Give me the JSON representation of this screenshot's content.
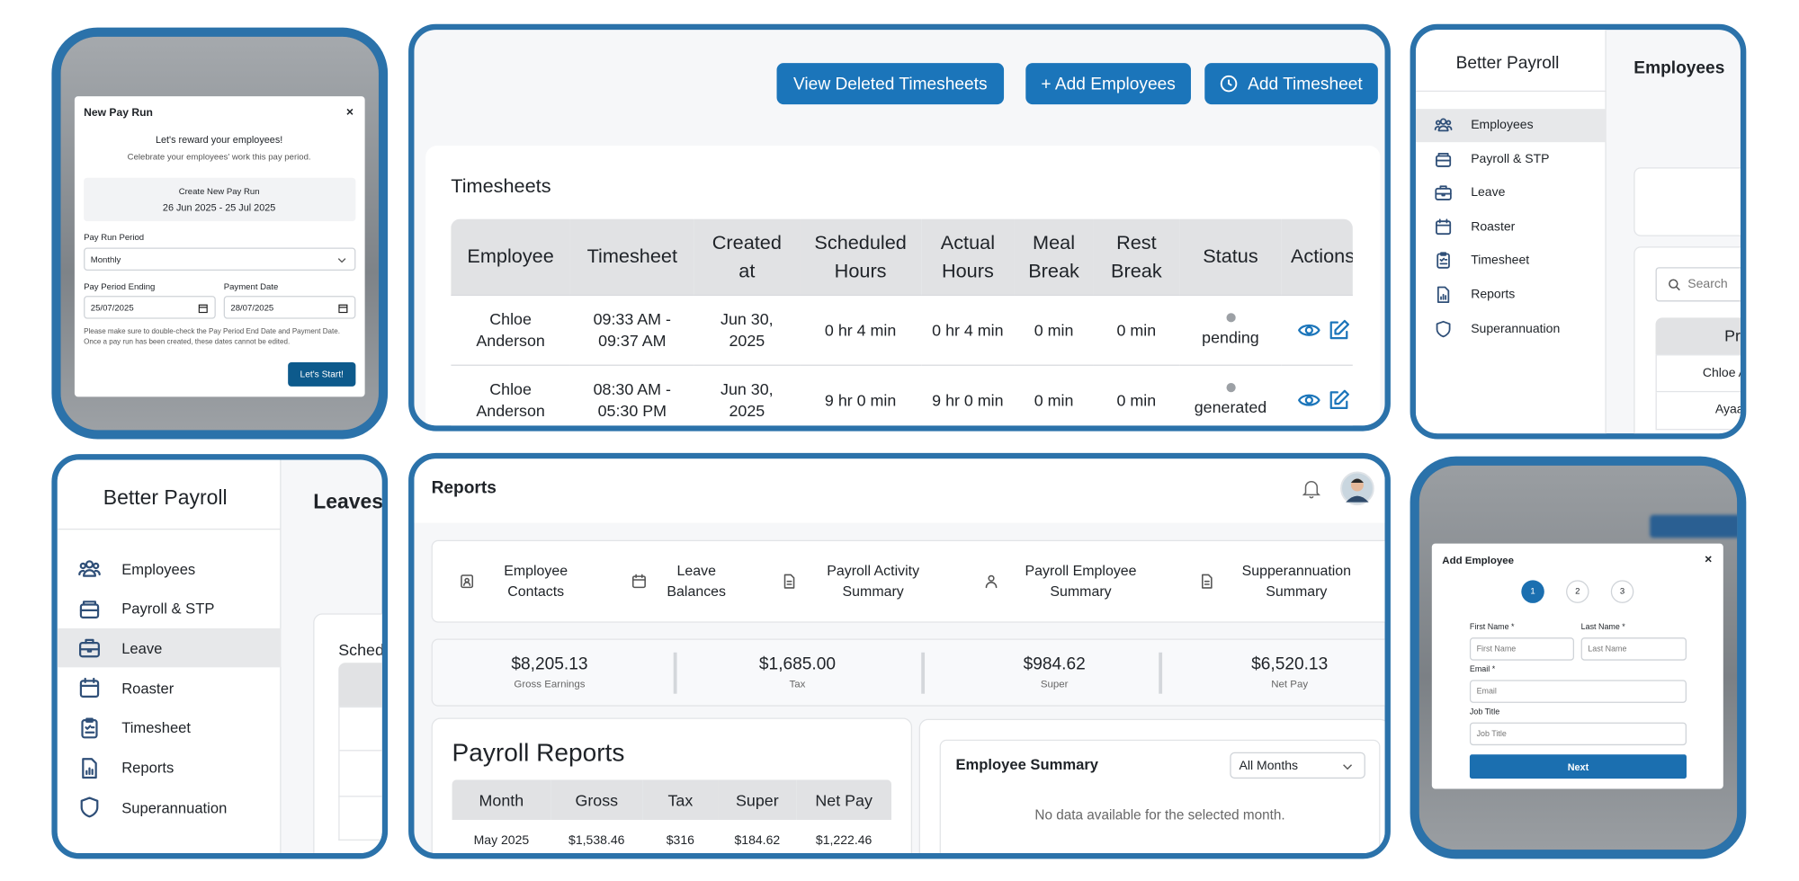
{
  "pay_run_modal": {
    "title": "New Pay Run",
    "close": "×",
    "heading": "Let's reward your employees!",
    "subheading": "Celebrate your employees' work this pay period.",
    "create_label": "Create New Pay Run",
    "date_range": "26 Jun 2025 - 25 Jul 2025",
    "period_label": "Pay Run Period",
    "period_value": "Monthly",
    "ending_label": "Pay Period Ending",
    "ending_value": "25/07/2025",
    "payment_label": "Payment Date",
    "payment_value": "28/07/2025",
    "note": "Please make sure to double-check the Pay Period End Date and Payment Date. Once a pay run has been created, these dates cannot be edited.",
    "button": "Let's Start!"
  },
  "timesheets_page": {
    "actions": [
      "View Deleted Timesheets",
      "+ Add Employees",
      "Add Timesheet"
    ],
    "card_title": "Timesheets",
    "columns": [
      "Employee",
      "Timesheet",
      "Created at",
      "Scheduled Hours",
      "Actual Hours",
      "Meal Break",
      "Rest Break",
      "Status",
      "Actions"
    ],
    "rows": [
      [
        "Chloe Anderson",
        "09:33 AM - 09:37 AM",
        "Jun 30, 2025",
        "0 hr 4 min",
        "0 hr 4 min",
        "0 min",
        "0 min",
        "pending"
      ],
      [
        "Chloe Anderson",
        "08:30 AM - 05:30 PM",
        "Jun 30, 2025",
        "9 hr 0 min",
        "9 hr 0 min",
        "0 min",
        "0 min",
        "generated"
      ]
    ]
  },
  "employees_page": {
    "brand": "Better Payroll",
    "nav": [
      "Employees",
      "Payroll & STP",
      "Leave",
      "Roaster",
      "Timesheet",
      "Reports",
      "Superannuation"
    ],
    "title": "Employees",
    "search_placeholder": "Search",
    "column": "Pr",
    "rows": [
      "Chloe A",
      "Ayaa"
    ]
  },
  "leave_page": {
    "brand": "Better Payroll",
    "nav": [
      "Employees",
      "Payroll & STP",
      "Leave",
      "Roaster",
      "Timesheet",
      "Reports",
      "Superannuation"
    ],
    "title": "Leaves",
    "card_title": "Sched"
  },
  "reports_page": {
    "title": "Reports",
    "tabs": [
      "Employee Contacts",
      "Leave Balances",
      "Payroll Activity Summary",
      "Payroll Employee Summary",
      "Supperannuation Summary"
    ],
    "stats": [
      {
        "value": "$8,205.13",
        "label": "Gross Earnings"
      },
      {
        "value": "$1,685.00",
        "label": "Tax"
      },
      {
        "value": "$984.62",
        "label": "Super"
      },
      {
        "value": "$6,520.13",
        "label": "Net Pay"
      }
    ],
    "payroll_title": "Payroll Reports",
    "columns": [
      "Month",
      "Gross",
      "Tax",
      "Super",
      "Net Pay"
    ],
    "rows": [
      [
        "May 2025",
        "$1,538.46",
        "$316",
        "$184.62",
        "$1,222.46"
      ]
    ],
    "summary_title": "Employee Summary",
    "filter": "All Months",
    "empty_message": "No data available for the selected month."
  },
  "add_employee_modal": {
    "title": "Add Employee",
    "close": "×",
    "steps": [
      "1",
      "2",
      "3"
    ],
    "fields": [
      {
        "label": "First Name *",
        "placeholder": "First Name"
      },
      {
        "label": "Last Name *",
        "placeholder": "Last Name"
      },
      {
        "label": "Email *",
        "placeholder": "Email"
      },
      {
        "label": "Job Title",
        "placeholder": "Job Title"
      }
    ],
    "button": "Next"
  }
}
